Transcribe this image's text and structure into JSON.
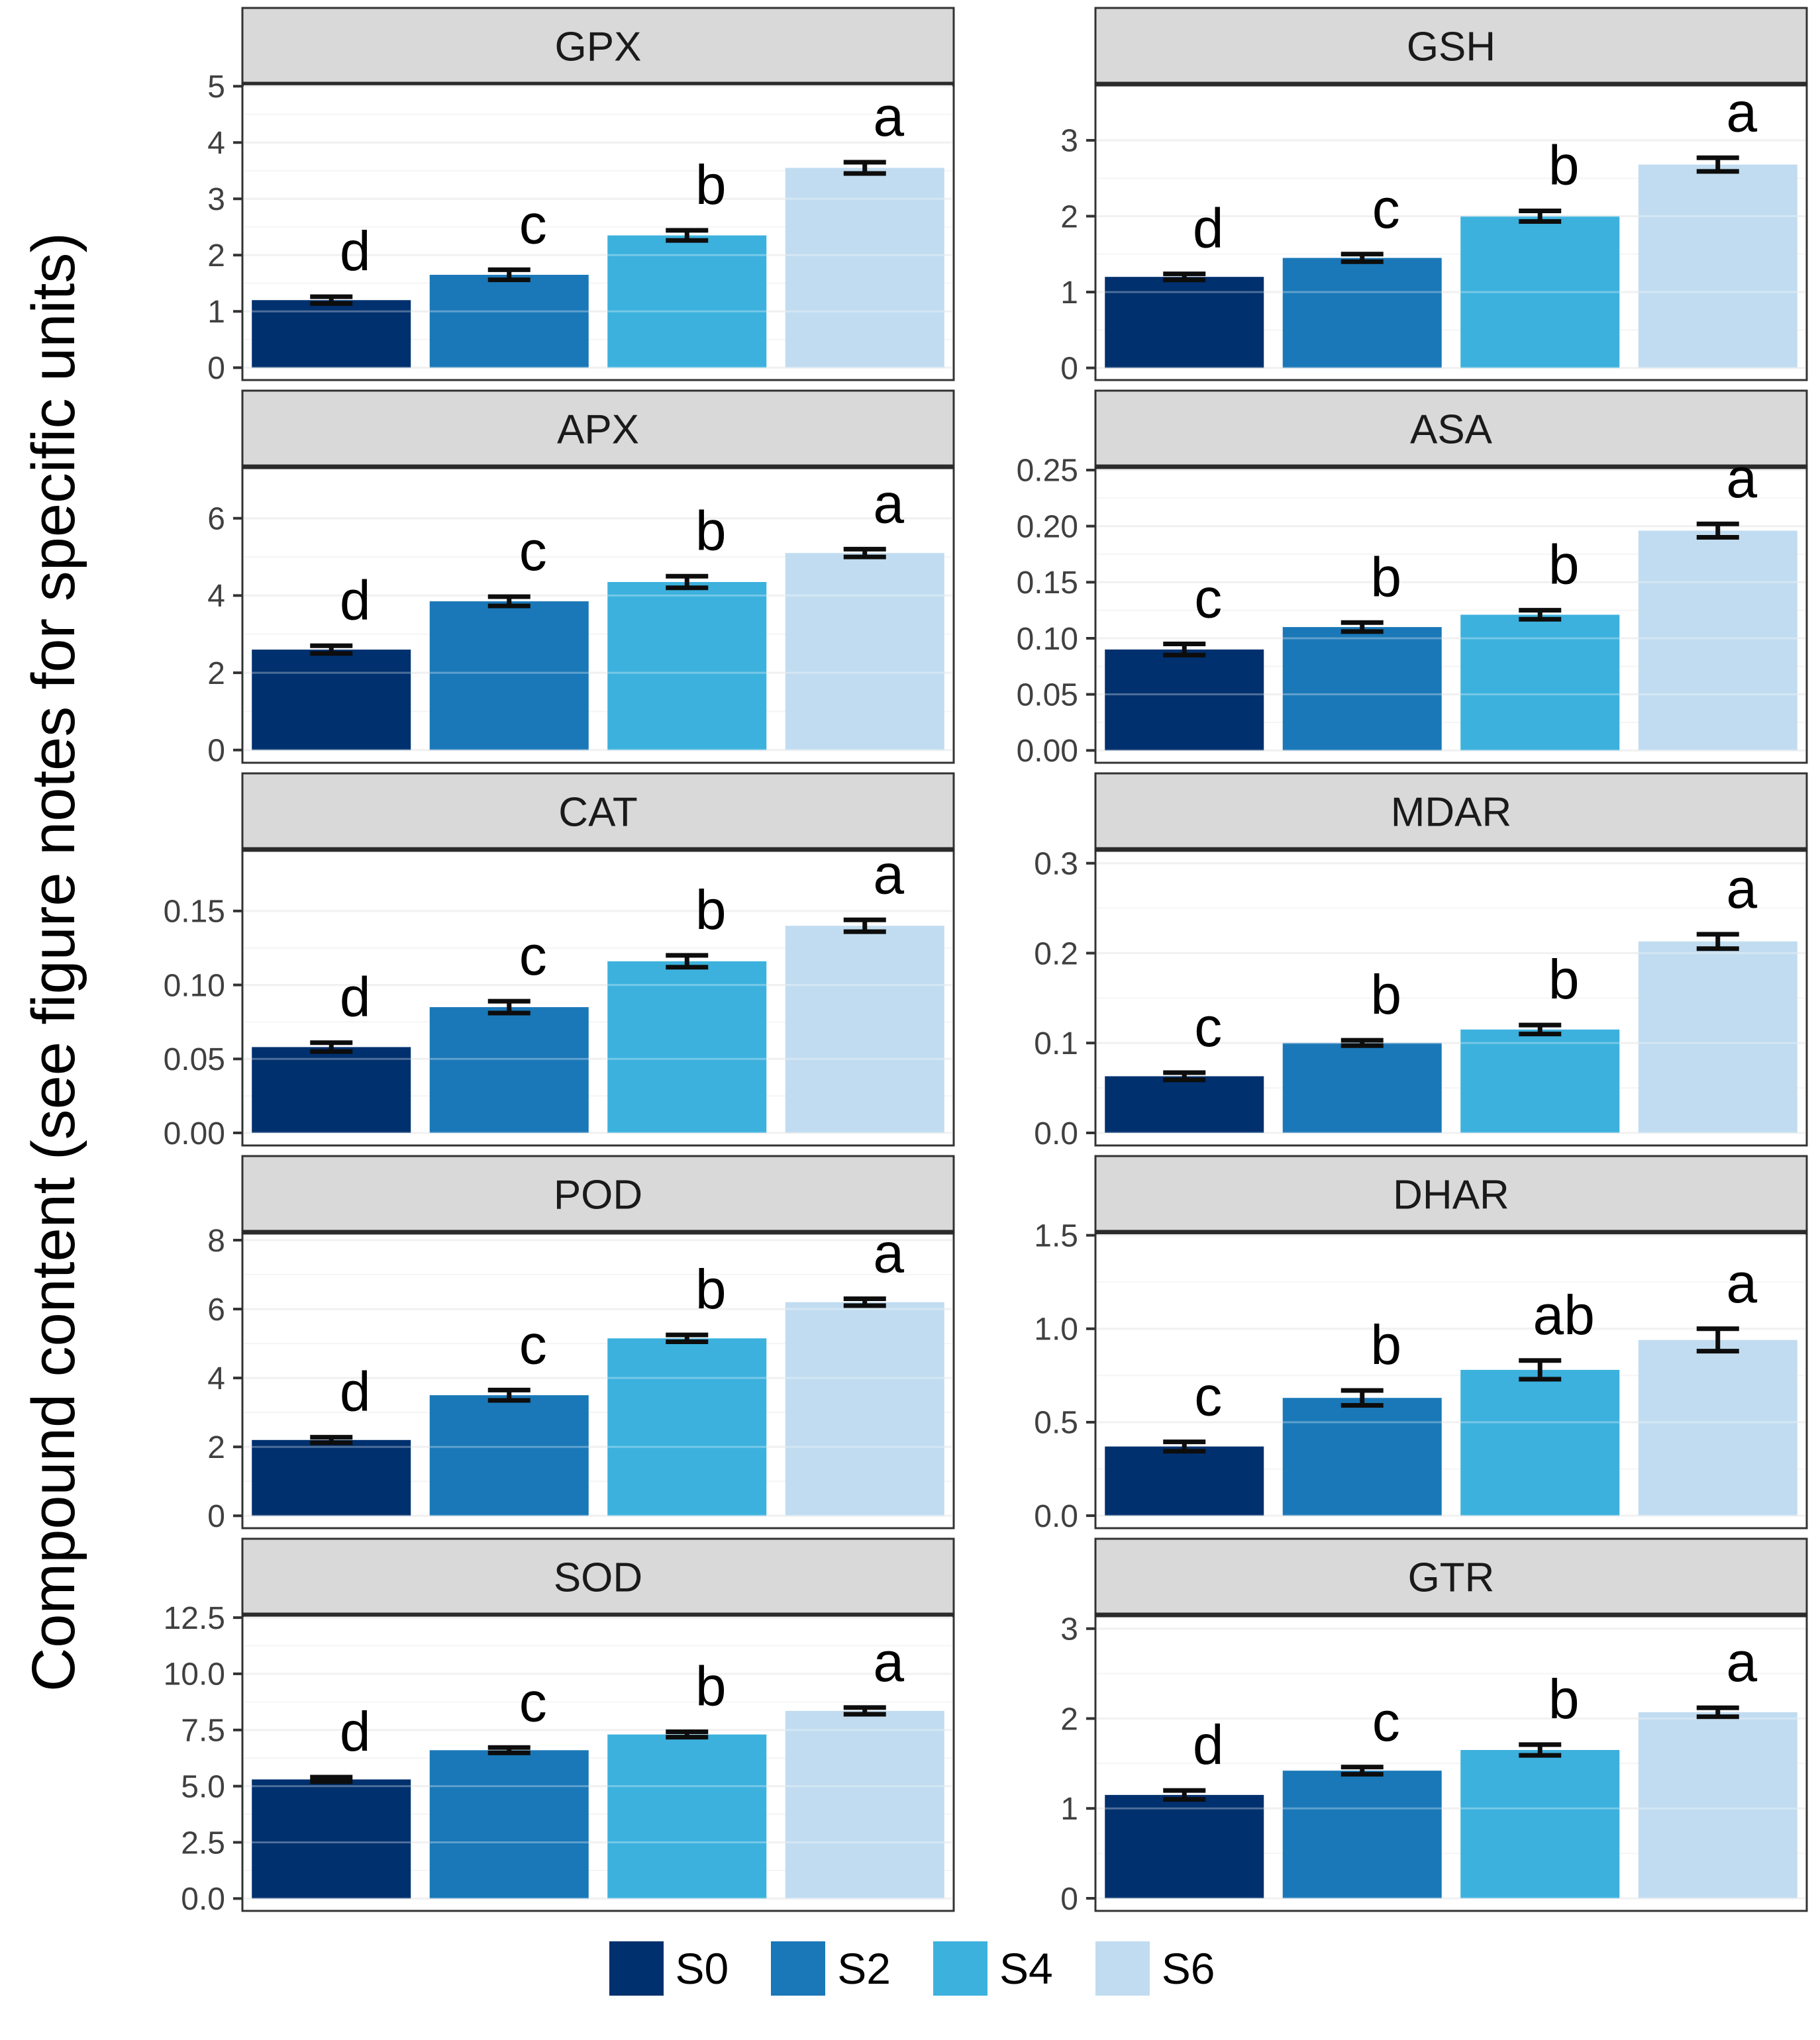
{
  "figure": {
    "y_axis_label": "Compound content (see figure notes for specific units)",
    "strip_bg": "#D9D9D9",
    "panel_bg": "#FFFFFF",
    "panel_border": "#333333",
    "grid_major": "#EBEBEB",
    "grid_minor": "#F5F5F5",
    "tick_label_color": "#404040",
    "error_bar_color": "#0D0D0D",
    "letter_color": "#000000",
    "series_colors": [
      "#00306E",
      "#1A78B8",
      "#3CB1DD",
      "#C1DCF0"
    ]
  },
  "legend": {
    "items": [
      {
        "label": "S0",
        "color": "#00306E"
      },
      {
        "label": "S2",
        "color": "#1A78B8"
      },
      {
        "label": "S4",
        "color": "#3CB1DD"
      },
      {
        "label": "S6",
        "color": "#C1DCF0"
      }
    ]
  },
  "chart_data": [
    {
      "type": "bar",
      "title": "GPX",
      "categories": [
        "S0",
        "S2",
        "S4",
        "S6"
      ],
      "values": [
        1.2,
        1.65,
        2.35,
        3.55
      ],
      "errors": [
        0.06,
        0.09,
        0.09,
        0.1
      ],
      "letters": [
        "d",
        "c",
        "b",
        "a"
      ],
      "yticks": [
        0,
        1,
        2,
        3,
        4,
        5
      ],
      "ytick_labels": [
        "0",
        "1",
        "2",
        "3",
        "4",
        "5"
      ],
      "ylim": [
        -0.22,
        5.05
      ]
    },
    {
      "type": "bar",
      "title": "GSH",
      "categories": [
        "S0",
        "S2",
        "S4",
        "S6"
      ],
      "values": [
        1.2,
        1.45,
        2.0,
        2.68
      ],
      "errors": [
        0.04,
        0.05,
        0.07,
        0.09
      ],
      "letters": [
        "d",
        "c",
        "b",
        "a"
      ],
      "yticks": [
        0,
        1,
        2,
        3
      ],
      "ytick_labels": [
        "0",
        "1",
        "2",
        "3"
      ],
      "ylim": [
        -0.16,
        3.75
      ]
    },
    {
      "type": "bar",
      "title": "APX",
      "categories": [
        "S0",
        "S2",
        "S4",
        "S6"
      ],
      "values": [
        2.6,
        3.85,
        4.35,
        5.1
      ],
      "errors": [
        0.1,
        0.12,
        0.15,
        0.1
      ],
      "letters": [
        "d",
        "c",
        "b",
        "a"
      ],
      "yticks": [
        0,
        2,
        4,
        6
      ],
      "ytick_labels": [
        "0",
        "2",
        "4",
        "6"
      ],
      "ylim": [
        -0.33,
        7.35
      ]
    },
    {
      "type": "bar",
      "title": "ASA",
      "categories": [
        "S0",
        "S2",
        "S4",
        "S6"
      ],
      "values": [
        0.09,
        0.11,
        0.121,
        0.196
      ],
      "errors": [
        0.005,
        0.004,
        0.004,
        0.006
      ],
      "letters": [
        "c",
        "b",
        "b",
        "a"
      ],
      "yticks": [
        0,
        0.05,
        0.1,
        0.15,
        0.2,
        0.25
      ],
      "ytick_labels": [
        "0.00",
        "0.05",
        "0.10",
        "0.15",
        "0.20",
        "0.25"
      ],
      "ylim": [
        -0.011,
        0.2535
      ]
    },
    {
      "type": "bar",
      "title": "CAT",
      "categories": [
        "S0",
        "S2",
        "S4",
        "S6"
      ],
      "values": [
        0.058,
        0.085,
        0.116,
        0.14
      ],
      "errors": [
        0.003,
        0.004,
        0.004,
        0.004
      ],
      "letters": [
        "d",
        "c",
        "b",
        "a"
      ],
      "yticks": [
        0,
        0.05,
        0.1,
        0.15
      ],
      "ytick_labels": [
        "0.00",
        "0.05",
        "0.10",
        "0.15"
      ],
      "ylim": [
        -0.0085,
        0.192
      ]
    },
    {
      "type": "bar",
      "title": "MDAR",
      "categories": [
        "S0",
        "S2",
        "S4",
        "S6"
      ],
      "values": [
        0.063,
        0.1,
        0.115,
        0.213
      ],
      "errors": [
        0.004,
        0.003,
        0.005,
        0.008
      ],
      "letters": [
        "c",
        "b",
        "b",
        "a"
      ],
      "yticks": [
        0,
        0.1,
        0.2,
        0.3
      ],
      "ytick_labels": [
        "0.0",
        "0.1",
        "0.2",
        "0.3"
      ],
      "ylim": [
        -0.014,
        0.316
      ]
    },
    {
      "type": "bar",
      "title": "POD",
      "categories": [
        "S0",
        "S2",
        "S4",
        "S6"
      ],
      "values": [
        2.2,
        3.5,
        5.15,
        6.2
      ],
      "errors": [
        0.08,
        0.15,
        0.1,
        0.1
      ],
      "letters": [
        "d",
        "c",
        "b",
        "a"
      ],
      "yticks": [
        0,
        2,
        4,
        6,
        8
      ],
      "ytick_labels": [
        "0",
        "2",
        "4",
        "6",
        "8"
      ],
      "ylim": [
        -0.36,
        8.25
      ]
    },
    {
      "type": "bar",
      "title": "DHAR",
      "categories": [
        "S0",
        "S2",
        "S4",
        "S6"
      ],
      "values": [
        0.37,
        0.63,
        0.78,
        0.94
      ],
      "errors": [
        0.025,
        0.04,
        0.05,
        0.06
      ],
      "letters": [
        "c",
        "b",
        "ab",
        "a"
      ],
      "yticks": [
        0,
        0.5,
        1.0,
        1.5
      ],
      "ytick_labels": [
        "0.0",
        "0.5",
        "1.0",
        "1.5"
      ],
      "ylim": [
        -0.067,
        1.52
      ]
    },
    {
      "type": "bar",
      "title": "SOD",
      "categories": [
        "S0",
        "S2",
        "S4",
        "S6"
      ],
      "values": [
        5.3,
        6.6,
        7.3,
        8.35
      ],
      "errors": [
        0.1,
        0.12,
        0.12,
        0.15
      ],
      "letters": [
        "d",
        "c",
        "b",
        "a"
      ],
      "yticks": [
        0,
        2.5,
        5.0,
        7.5,
        10.0,
        12.5
      ],
      "ytick_labels": [
        "0.0",
        "2.5",
        "5.0",
        "7.5",
        "10.0",
        "12.5"
      ],
      "ylim": [
        -0.55,
        12.65
      ]
    },
    {
      "type": "bar",
      "title": "GTR",
      "categories": [
        "S0",
        "S2",
        "S4",
        "S6"
      ],
      "values": [
        1.15,
        1.42,
        1.65,
        2.07
      ],
      "errors": [
        0.05,
        0.04,
        0.06,
        0.05
      ],
      "letters": [
        "d",
        "c",
        "b",
        "a"
      ],
      "yticks": [
        0,
        1,
        2,
        3
      ],
      "ytick_labels": [
        "0",
        "1",
        "2",
        "3"
      ],
      "ylim": [
        -0.14,
        3.16
      ]
    }
  ]
}
